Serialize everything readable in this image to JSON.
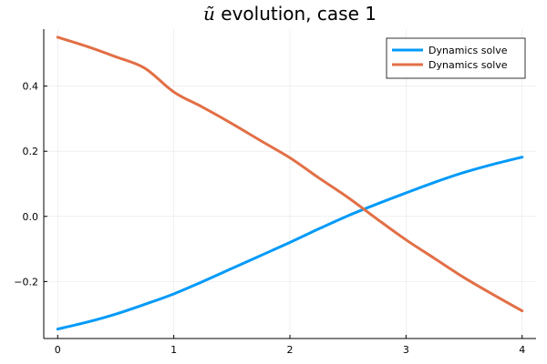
{
  "chart_data": {
    "type": "line",
    "title": {
      "symbol": "ũ",
      "text": " evolution, case 1"
    },
    "xlabel": "",
    "ylabel": "",
    "xlim": [
      -0.12,
      4.12
    ],
    "ylim": [
      -0.375,
      0.575
    ],
    "x_ticks": [
      0,
      1,
      2,
      3,
      4
    ],
    "x_tick_labels": [
      "0",
      "1",
      "2",
      "3",
      "4"
    ],
    "y_ticks": [
      -0.2,
      0.0,
      0.2,
      0.4
    ],
    "y_tick_labels": [
      "−0.2",
      "0.0",
      "0.2",
      "0.4"
    ],
    "grid": true,
    "legend_position": "top-right",
    "series": [
      {
        "name": "Dynamics solve",
        "color": "#009af9",
        "x": [
          0,
          0.25,
          0.5,
          0.75,
          1.0,
          1.25,
          1.5,
          1.75,
          2.0,
          2.25,
          2.5,
          2.75,
          3.0,
          3.25,
          3.5,
          3.75,
          4.0
        ],
        "y": [
          -0.346,
          -0.325,
          -0.3,
          -0.27,
          -0.238,
          -0.2,
          -0.16,
          -0.12,
          -0.08,
          -0.038,
          0.002,
          0.038,
          0.072,
          0.105,
          0.135,
          0.16,
          0.182
        ]
      },
      {
        "name": "Dynamics solve",
        "color": "#e26f46",
        "x": [
          0,
          0.25,
          0.5,
          0.75,
          1.0,
          1.25,
          1.5,
          1.75,
          2.0,
          2.25,
          2.5,
          2.75,
          3.0,
          3.25,
          3.5,
          3.75,
          4.0
        ],
        "y": [
          0.55,
          0.522,
          0.49,
          0.455,
          0.382,
          0.335,
          0.285,
          0.232,
          0.18,
          0.118,
          0.058,
          -0.008,
          -0.072,
          -0.13,
          -0.188,
          -0.24,
          -0.29
        ]
      }
    ]
  }
}
